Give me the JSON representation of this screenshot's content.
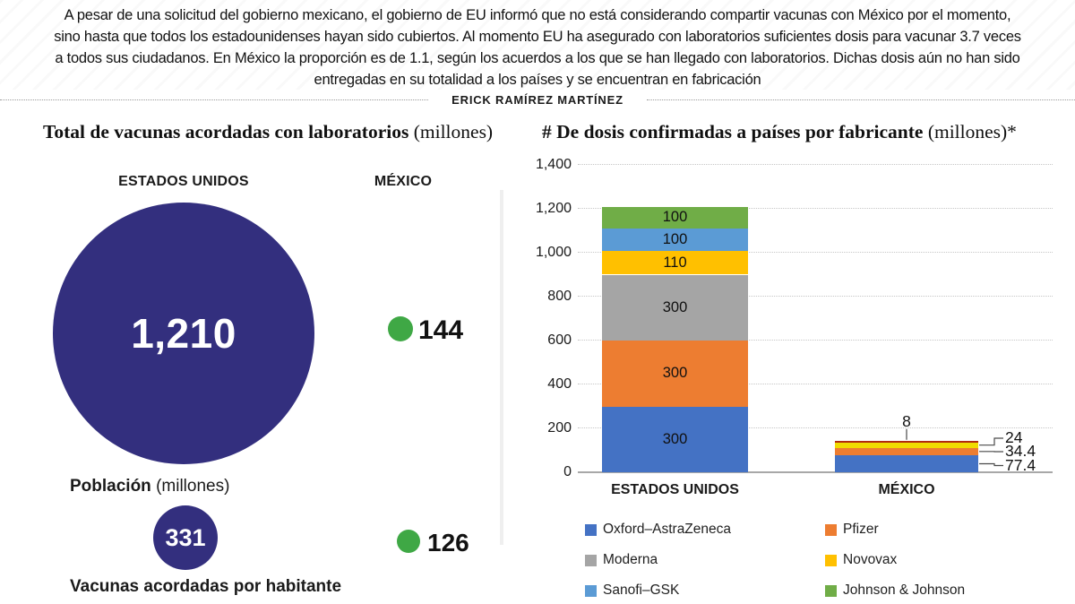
{
  "banner": {
    "lines": [
      "A pesar de una solicitud del gobierno mexicano, el gobierno de EU informó que no está considerando compartir vacunas con México por el momento,",
      "sino hasta que todos los estadounidenses hayan sido cubiertos. Al momento EU ha asegurado con laboratorios suficientes dosis para vacunar 3.7 veces",
      "a todos sus ciudadanos. En México la proporción es de 1.1, según los acuerdos a los que se han llegado con laboratorios. Dichas dosis aún no han sido",
      "entregadas en su totalidad a los países y se encuentran en fabricación"
    ],
    "byline": "ERICK RAMÍREZ MARTÍNEZ"
  },
  "left_panel": {
    "title": "Total de vacunas acordadas con laboratorios",
    "title_suffix": " (millones)",
    "header_us": "ESTADOS UNIDOS",
    "header_mx": "MÉXICO",
    "us_total": "1,210",
    "mx_total": "144",
    "population_label": "Población",
    "population_suffix": " (millones)",
    "us_population": "331",
    "mx_population": "126",
    "footer_label": "Vacunas acordadas por habitante",
    "colors": {
      "navy": "#332F7E",
      "green": "#3FA845"
    }
  },
  "chart_data": {
    "type": "bar",
    "stacked": true,
    "title": "# De dosis confirmadas a países por fabricante",
    "title_suffix": " (millones)*",
    "categories": [
      "ESTADOS UNIDOS",
      "MÉXICO"
    ],
    "y_axis": {
      "min": 0,
      "max": 1400,
      "step": 200,
      "grid": "dotted",
      "tick_labels": [
        "0",
        "200",
        "400",
        "600",
        "800",
        "1,000",
        "1,200",
        "1,400"
      ]
    },
    "bars": [
      {
        "category": "ESTADOS UNIDOS",
        "total": 1210,
        "segments": [
          {
            "name": "Oxford–AstraZeneca",
            "value": 300,
            "label": "300",
            "color": "#4472C4"
          },
          {
            "name": "Pfizer",
            "value": 300,
            "label": "300",
            "color": "#ED7D31"
          },
          {
            "name": "Moderna",
            "value": 300,
            "label": "300",
            "color": "#A5A5A5"
          },
          {
            "name": "Novovax",
            "value": 110,
            "label": "110",
            "color": "#FFC000"
          },
          {
            "name": "Sanofi–GSK",
            "value": 100,
            "label": "100",
            "color": "#5B9BD5"
          },
          {
            "name": "Johnson & Johnson",
            "value": 100,
            "label": "100",
            "color": "#70AD47"
          }
        ]
      },
      {
        "category": "MÉXICO",
        "total": 143.8,
        "segments": [
          {
            "name": "Oxford–AstraZeneca",
            "value": 77.4,
            "callout": "77.4",
            "color": "#4472C4"
          },
          {
            "name": "Pfizer",
            "value": 34.4,
            "callout": "34.4",
            "color": "#ED7D31"
          },
          {
            "name": "Novovax",
            "value": 24,
            "callout": "24",
            "color": "#F0DC00"
          },
          {
            "name": "",
            "value": 8,
            "callout_top": "8",
            "color": "#B02B10"
          }
        ]
      }
    ],
    "legend_columns": [
      [
        {
          "name": "Oxford–AstraZeneca",
          "color": "#4472C4"
        },
        {
          "name": "Moderna",
          "color": "#A5A5A5"
        },
        {
          "name": "Sanofi–GSK",
          "color": "#5B9BD5"
        }
      ],
      [
        {
          "name": "Pfizer",
          "color": "#ED7D31"
        },
        {
          "name": "Novovax",
          "color": "#FFC000"
        },
        {
          "name": "Johnson & Johnson",
          "color": "#70AD47"
        }
      ]
    ]
  }
}
